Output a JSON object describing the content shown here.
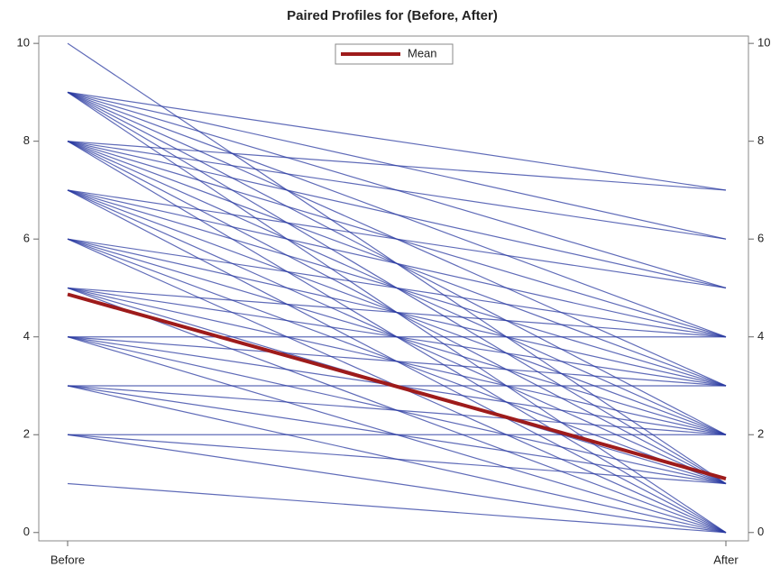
{
  "chart_data": {
    "type": "line",
    "title": "Paired Profiles for (Before, After)",
    "categories": [
      "Before",
      "After"
    ],
    "ylim": [
      -0.17,
      10.15
    ],
    "yticks": [
      0,
      2,
      4,
      6,
      8,
      10
    ],
    "y2lim": [
      -0.17,
      10.15
    ],
    "y2ticks": [
      0,
      2,
      4,
      6,
      8,
      10
    ],
    "legend": "top",
    "profiles": {
      "color": "#2a3aa0",
      "values": [
        [
          10,
          1
        ],
        [
          9,
          7
        ],
        [
          9,
          6
        ],
        [
          9,
          5
        ],
        [
          9,
          4
        ],
        [
          9,
          3
        ],
        [
          9,
          2
        ],
        [
          9,
          1
        ],
        [
          9,
          0
        ],
        [
          8,
          7
        ],
        [
          8,
          6
        ],
        [
          8,
          5
        ],
        [
          8,
          4
        ],
        [
          8,
          3
        ],
        [
          8,
          2
        ],
        [
          8,
          1
        ],
        [
          8,
          0
        ],
        [
          7,
          5
        ],
        [
          7,
          4
        ],
        [
          7,
          3
        ],
        [
          7,
          2
        ],
        [
          7,
          1
        ],
        [
          7,
          0
        ],
        [
          6,
          4
        ],
        [
          6,
          3
        ],
        [
          6,
          2
        ],
        [
          6,
          1
        ],
        [
          6,
          0
        ],
        [
          5,
          4
        ],
        [
          5,
          3
        ],
        [
          5,
          2
        ],
        [
          5,
          1
        ],
        [
          5,
          0
        ],
        [
          4,
          4
        ],
        [
          4,
          3
        ],
        [
          4,
          2
        ],
        [
          4,
          1
        ],
        [
          4,
          0
        ],
        [
          3,
          3
        ],
        [
          3,
          2
        ],
        [
          3,
          1
        ],
        [
          3,
          0
        ],
        [
          2,
          2
        ],
        [
          2,
          1
        ],
        [
          2,
          0
        ],
        [
          1,
          0
        ]
      ]
    },
    "series": [
      {
        "name": "Mean",
        "color": "#9e1b1b",
        "values": [
          4.87,
          1.1
        ]
      }
    ]
  }
}
